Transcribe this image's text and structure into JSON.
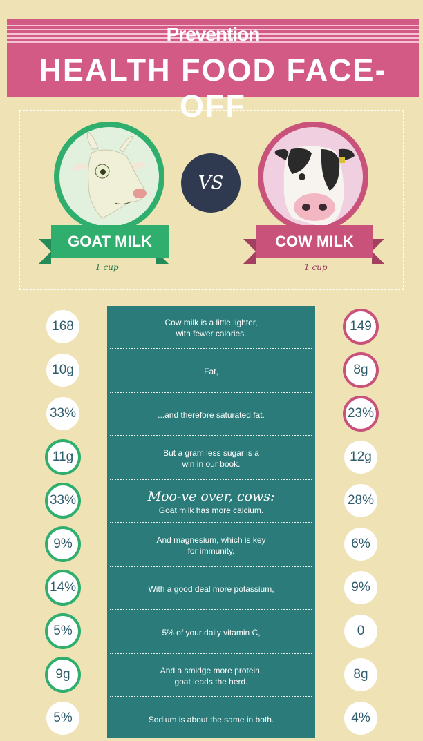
{
  "header": {
    "brand": "Prevention",
    "title": "HEALTH FOOD FACE-OFF"
  },
  "versus": {
    "vs": "VS",
    "left": {
      "name": "GOAT MILK",
      "serving": "1 cup",
      "icon": "goat-illustration-icon"
    },
    "right": {
      "name": "COW MILK",
      "serving": "1 cup",
      "icon": "cow-illustration-icon"
    }
  },
  "colors": {
    "goat": "#2fae6e",
    "cow": "#c9527b",
    "panel": "#2a7b7a",
    "banner": "#d45a86",
    "background": "#efe3b6"
  },
  "rows": [
    {
      "goat": "168",
      "cow": "149",
      "winner": "cow",
      "lines": [
        "Cow milk is a little lighter,",
        "with fewer calories."
      ]
    },
    {
      "goat": "10g",
      "cow": "8g",
      "winner": "cow",
      "lines": [
        "Fat,"
      ]
    },
    {
      "goat": "33%",
      "cow": "23%",
      "winner": "cow",
      "lines": [
        "...and therefore saturated fat."
      ]
    },
    {
      "goat": "11g",
      "cow": "12g",
      "winner": "goat",
      "lines": [
        "But a gram less sugar is a",
        "win in our book."
      ]
    },
    {
      "goat": "33%",
      "cow": "28%",
      "winner": "goat",
      "heading": "Moo-ve over, cows:",
      "lines": [
        "Goat milk has more calcium."
      ]
    },
    {
      "goat": "9%",
      "cow": "6%",
      "winner": "goat",
      "lines": [
        "And magnesium, which is key",
        "for immunity."
      ]
    },
    {
      "goat": "14%",
      "cow": "9%",
      "winner": "goat",
      "lines": [
        "With a good deal more potassium,"
      ]
    },
    {
      "goat": "5%",
      "cow": "0",
      "winner": "goat",
      "lines": [
        "5% of your daily vitamin C,"
      ]
    },
    {
      "goat": "9g",
      "cow": "8g",
      "winner": "goat",
      "lines": [
        "And a smidge more protein,",
        "goat leads the herd."
      ]
    },
    {
      "goat": "5%",
      "cow": "4%",
      "winner": "none",
      "lines": [
        "Sodium is about the same in both."
      ]
    }
  ]
}
